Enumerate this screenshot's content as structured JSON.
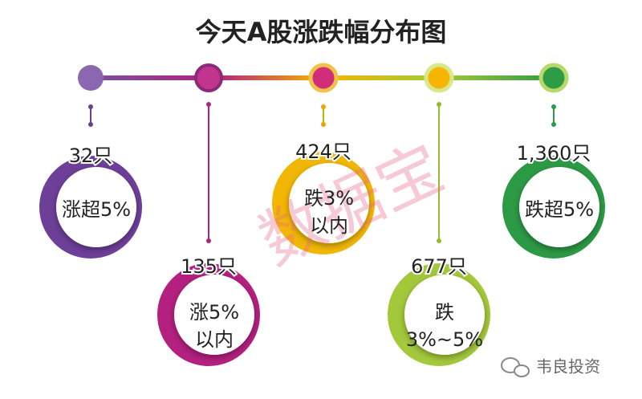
{
  "title": "今天A股涨跌幅分布图",
  "items": [
    {
      "count": "32只",
      "label_lines": [
        "涨超5%"
      ]
    },
    {
      "count": "135只",
      "label_lines": [
        "涨5%",
        "以内"
      ]
    },
    {
      "count": "424只",
      "label_lines": [
        "跌3%",
        "以内"
      ]
    },
    {
      "count": "677只",
      "label_lines": [
        "跌",
        "3%~5%"
      ]
    },
    {
      "count": "1,360只",
      "label_lines": [
        "跌超5%"
      ]
    }
  ],
  "watermark": "数据宝",
  "footer": "韦良投资"
}
